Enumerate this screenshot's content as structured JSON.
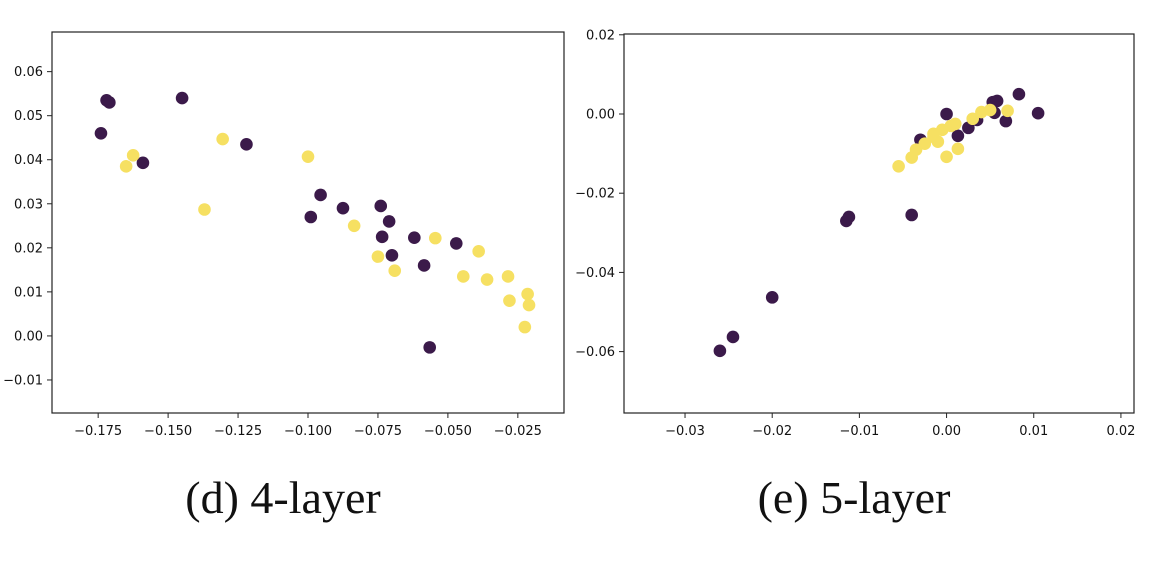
{
  "colors": {
    "dark": "#3b1a4a",
    "yellow": "#f6e062",
    "axis": "#222222"
  },
  "chart_data": [
    {
      "type": "scatter",
      "caption": "(d) 4-layer",
      "xlim": [
        -0.1915,
        -0.0085
      ],
      "ylim": [
        -0.0175,
        0.069
      ],
      "xticks": [
        -0.175,
        -0.15,
        -0.125,
        -0.1,
        -0.075,
        -0.05,
        -0.025
      ],
      "xtick_labels": [
        "−0.175",
        "−0.150",
        "−0.125",
        "−0.100",
        "−0.075",
        "−0.050",
        "−0.025"
      ],
      "yticks": [
        -0.01,
        0.0,
        0.01,
        0.02,
        0.03,
        0.04,
        0.05,
        0.06
      ],
      "ytick_labels": [
        "−0.01",
        "0.00",
        "0.01",
        "0.02",
        "0.03",
        "0.04",
        "0.05",
        "0.06"
      ],
      "grid": false,
      "series": [
        {
          "color_key": "dark",
          "points": [
            [
              -0.174,
              0.046
            ],
            [
              -0.172,
              0.0535
            ],
            [
              -0.171,
              0.053
            ],
            [
              -0.159,
              0.0393
            ],
            [
              -0.145,
              0.054
            ],
            [
              -0.122,
              0.0435
            ],
            [
              -0.099,
              0.027
            ],
            [
              -0.0955,
              0.032
            ],
            [
              -0.0875,
              0.029
            ],
            [
              -0.074,
              0.0295
            ],
            [
              -0.0735,
              0.0225
            ],
            [
              -0.071,
              0.026
            ],
            [
              -0.07,
              0.0183
            ],
            [
              -0.062,
              0.0223
            ],
            [
              -0.0585,
              0.016
            ],
            [
              -0.047,
              0.021
            ],
            [
              -0.0565,
              -0.0026
            ]
          ]
        },
        {
          "color_key": "yellow",
          "points": [
            [
              -0.165,
              0.0385
            ],
            [
              -0.1625,
              0.041
            ],
            [
              -0.137,
              0.0287
            ],
            [
              -0.1305,
              0.0447
            ],
            [
              -0.1,
              0.0407
            ],
            [
              -0.0835,
              0.025
            ],
            [
              -0.075,
              0.018
            ],
            [
              -0.069,
              0.0148
            ],
            [
              -0.0545,
              0.0222
            ],
            [
              -0.0445,
              0.0135
            ],
            [
              -0.039,
              0.0192
            ],
            [
              -0.036,
              0.0128
            ],
            [
              -0.0285,
              0.0135
            ],
            [
              -0.028,
              0.008
            ],
            [
              -0.0215,
              0.0095
            ],
            [
              -0.021,
              0.007
            ],
            [
              -0.0225,
              0.002
            ]
          ]
        }
      ]
    },
    {
      "type": "scatter",
      "caption": "(e) 5-layer",
      "xlim": [
        -0.037,
        0.0215
      ],
      "ylim": [
        -0.0755,
        0.0202
      ],
      "xticks": [
        -0.03,
        -0.02,
        -0.01,
        0.0,
        0.01,
        0.02
      ],
      "xtick_labels": [
        "−0.03",
        "−0.02",
        "−0.01",
        "0.00",
        "0.01",
        "0.02"
      ],
      "yticks": [
        -0.06,
        -0.04,
        -0.02,
        0.0,
        0.02
      ],
      "ytick_labels": [
        "−0.06",
        "−0.04",
        "−0.02",
        "0.00",
        "0.02"
      ],
      "grid": false,
      "series": [
        {
          "color_key": "dark",
          "points": [
            [
              -0.026,
              -0.0598
            ],
            [
              -0.0245,
              -0.0563
            ],
            [
              -0.02,
              -0.0463
            ],
            [
              -0.0115,
              -0.027
            ],
            [
              -0.0112,
              -0.026
            ],
            [
              -0.004,
              -0.0255
            ],
            [
              -0.003,
              -0.0065
            ],
            [
              0.0,
              0.0
            ],
            [
              0.0013,
              -0.0055
            ],
            [
              0.0025,
              -0.0035
            ],
            [
              0.0035,
              -0.0015
            ],
            [
              0.0053,
              0.003
            ],
            [
              0.0058,
              0.0033
            ],
            [
              0.0068,
              -0.0018
            ],
            [
              0.0055,
              0.0003
            ],
            [
              0.0083,
              0.005
            ],
            [
              0.0105,
              0.0002
            ]
          ]
        },
        {
          "color_key": "yellow",
          "points": [
            [
              -0.0055,
              -0.0132
            ],
            [
              -0.004,
              -0.011
            ],
            [
              -0.0035,
              -0.009
            ],
            [
              -0.0025,
              -0.0075
            ],
            [
              -0.0015,
              -0.005
            ],
            [
              -0.001,
              -0.007
            ],
            [
              -0.0005,
              -0.004
            ],
            [
              0.0005,
              -0.003
            ],
            [
              0.001,
              -0.0025
            ],
            [
              0.0,
              -0.0108
            ],
            [
              0.0013,
              -0.0088
            ],
            [
              0.003,
              -0.0012
            ],
            [
              0.004,
              0.0005
            ],
            [
              0.005,
              0.001
            ],
            [
              0.007,
              0.0008
            ],
            [
              -0.0015,
              -0.0058
            ]
          ]
        }
      ]
    }
  ]
}
